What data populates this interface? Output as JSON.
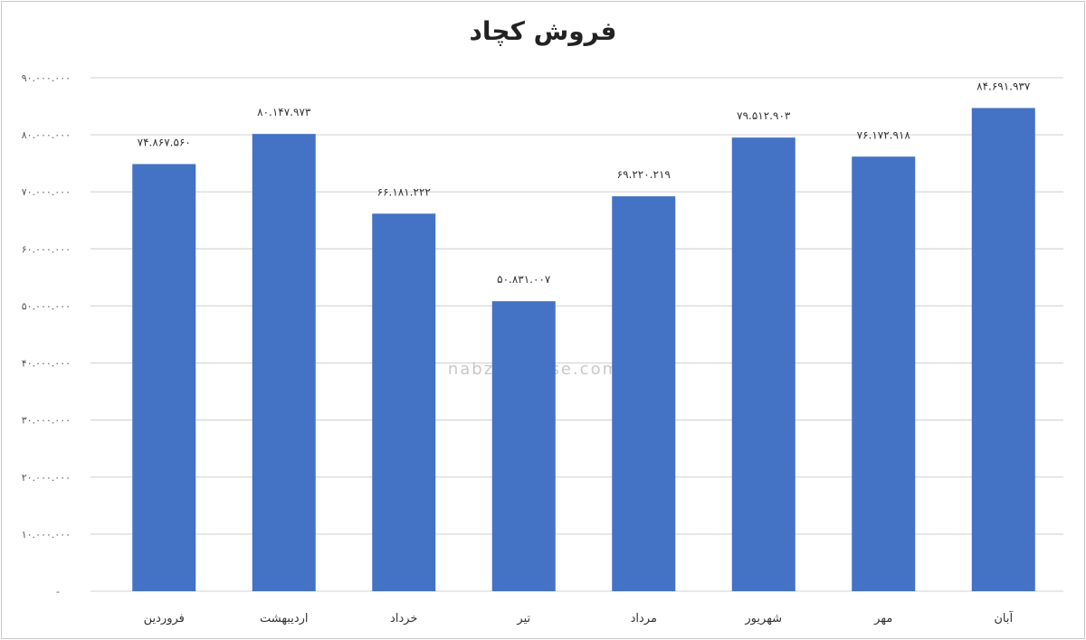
{
  "chart_data": {
    "type": "bar",
    "title": "فروش کچاد",
    "categories": [
      "فروردین",
      "اردیبهشت",
      "خرداد",
      "تیر",
      "مرداد",
      "شهریور",
      "مهر",
      "آبان"
    ],
    "values": [
      74867560,
      80147973,
      66181222,
      50831007,
      69220219,
      79512903,
      76172918,
      84691937
    ],
    "data_labels": [
      "۷۴.۸۶۷.۵۶۰",
      "۸۰.۱۴۷.۹۷۳",
      "۶۶.۱۸۱.۲۲۲",
      "۵۰.۸۳۱.۰۰۷",
      "۶۹.۲۲۰.۲۱۹",
      "۷۹.۵۱۲.۹۰۳",
      "۷۶.۱۷۲.۹۱۸",
      "۸۴.۶۹۱.۹۳۷"
    ],
    "yticks": [
      0,
      10000000,
      20000000,
      30000000,
      40000000,
      50000000,
      60000000,
      70000000,
      80000000,
      90000000
    ],
    "ytick_labels": [
      "-",
      "۱۰.۰۰۰.۰۰۰",
      "۲۰.۰۰۰.۰۰۰",
      "۳۰.۰۰۰.۰۰۰",
      "۴۰.۰۰۰.۰۰۰",
      "۵۰.۰۰۰.۰۰۰",
      "۶۰.۰۰۰.۰۰۰",
      "۷۰.۰۰۰.۰۰۰",
      "۸۰.۰۰۰.۰۰۰",
      "۹۰.۰۰۰.۰۰۰"
    ],
    "ylim": [
      0,
      90000000
    ],
    "xlabel": "",
    "ylabel": "",
    "grid": true,
    "legend": "none",
    "bar_color": "#4472c4",
    "grid_color": "#d9d9d9"
  },
  "watermark": {
    "text": "nabzebourse.com"
  }
}
